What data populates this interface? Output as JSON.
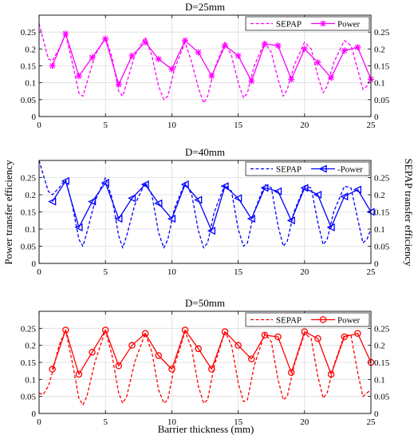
{
  "figure": {
    "xlabel": "Barrier thickness (mm)",
    "ylabel_left": "Power transfer efficiency",
    "ylabel_right": "SEPAP transfer efficiency"
  },
  "chart_data": [
    {
      "type": "line",
      "title": "D=25mm",
      "xlabel": "Barrier thickness (mm)",
      "ylabel": "Power transfer efficiency",
      "ylabel_right": "SEPAP transfer efficiency",
      "xlim": [
        0,
        25
      ],
      "ylim": [
        0,
        0.3
      ],
      "xticks": [
        0,
        5,
        10,
        15,
        20,
        25
      ],
      "yticks": [
        0,
        0.05,
        0.1,
        0.15,
        0.2,
        0.25
      ],
      "ytick_labels": [
        "0",
        "0.05",
        "0.1",
        "0.15",
        "0.2",
        "0.25"
      ],
      "grid": true,
      "legend_position": "top-right",
      "color": "#ff00ff",
      "marker": "star",
      "series": [
        {
          "name": "SEPAP",
          "style": "dashed",
          "x": [
            0,
            0.3,
            0.7,
            1.0,
            1.5,
            2.0,
            2.5,
            3.0,
            3.3,
            3.6,
            4.2,
            5.0,
            5.5,
            6.0,
            6.3,
            6.6,
            7.2,
            8.0,
            8.5,
            9.0,
            9.4,
            9.7,
            10.2,
            11.0,
            11.5,
            12.0,
            12.4,
            12.7,
            13.2,
            14.0,
            14.5,
            15.0,
            15.4,
            15.7,
            16.2,
            17.0,
            17.5,
            18.0,
            18.4,
            18.7,
            19.2,
            20.0,
            20.5,
            21.0,
            21.4,
            21.7,
            22.2,
            23.0,
            23.5,
            24.0,
            24.4,
            24.7,
            25.0
          ],
          "values": [
            0.275,
            0.23,
            0.17,
            0.165,
            0.2,
            0.245,
            0.16,
            0.07,
            0.06,
            0.1,
            0.18,
            0.235,
            0.175,
            0.075,
            0.06,
            0.1,
            0.18,
            0.235,
            0.18,
            0.09,
            0.05,
            0.06,
            0.14,
            0.22,
            0.16,
            0.085,
            0.04,
            0.06,
            0.14,
            0.22,
            0.18,
            0.1,
            0.055,
            0.07,
            0.15,
            0.22,
            0.19,
            0.11,
            0.06,
            0.08,
            0.15,
            0.22,
            0.2,
            0.12,
            0.07,
            0.09,
            0.16,
            0.225,
            0.21,
            0.14,
            0.08,
            0.09,
            0.12
          ]
        },
        {
          "name": "Power",
          "style": "solid",
          "x": [
            1,
            2,
            3,
            4,
            5,
            6,
            7,
            8,
            9,
            10,
            11,
            12,
            13,
            14,
            15,
            16,
            17,
            18,
            19,
            20,
            21,
            22,
            23,
            24,
            25
          ],
          "values": [
            0.15,
            0.245,
            0.12,
            0.175,
            0.23,
            0.095,
            0.18,
            0.22,
            0.17,
            0.14,
            0.225,
            0.19,
            0.12,
            0.21,
            0.18,
            0.105,
            0.215,
            0.21,
            0.11,
            0.2,
            0.16,
            0.115,
            0.195,
            0.205,
            0.11
          ]
        }
      ]
    },
    {
      "type": "line",
      "title": "D=40mm",
      "xlabel": "Barrier thickness (mm)",
      "ylabel": "Power transfer efficiency",
      "ylabel_right": "SEPAP transfer efficiency",
      "xlim": [
        0,
        25
      ],
      "ylim": [
        0,
        0.3
      ],
      "xticks": [
        0,
        5,
        10,
        15,
        20,
        25
      ],
      "yticks": [
        0,
        0.05,
        0.1,
        0.15,
        0.2,
        0.25
      ],
      "ytick_labels": [
        "0",
        "0.05",
        "0.1",
        "0.15",
        "0.2",
        "0.25"
      ],
      "grid": true,
      "legend_position": "top-right",
      "color": "#0000ff",
      "marker": "triangle-left",
      "series": [
        {
          "name": "SEPAP",
          "style": "dashed",
          "x": [
            0,
            0.3,
            0.7,
            1.0,
            1.5,
            2.0,
            2.5,
            3.0,
            3.3,
            3.6,
            4.2,
            5.0,
            5.5,
            6.0,
            6.3,
            6.6,
            7.2,
            8.0,
            8.5,
            9.0,
            9.4,
            9.7,
            10.2,
            11.0,
            11.5,
            12.0,
            12.4,
            12.7,
            13.2,
            14.0,
            14.5,
            15.0,
            15.4,
            15.7,
            16.2,
            17.0,
            17.5,
            18.0,
            18.4,
            18.7,
            19.2,
            20.0,
            20.5,
            21.0,
            21.4,
            21.7,
            22.2,
            23.0,
            23.5,
            24.0,
            24.4,
            24.7,
            25.0
          ],
          "values": [
            0.3,
            0.26,
            0.21,
            0.2,
            0.22,
            0.245,
            0.17,
            0.07,
            0.05,
            0.09,
            0.18,
            0.25,
            0.19,
            0.08,
            0.045,
            0.08,
            0.17,
            0.235,
            0.2,
            0.09,
            0.045,
            0.07,
            0.16,
            0.235,
            0.2,
            0.095,
            0.045,
            0.06,
            0.15,
            0.23,
            0.21,
            0.1,
            0.05,
            0.06,
            0.15,
            0.23,
            0.22,
            0.11,
            0.05,
            0.065,
            0.15,
            0.225,
            0.22,
            0.12,
            0.055,
            0.07,
            0.15,
            0.225,
            0.22,
            0.13,
            0.06,
            0.07,
            0.1
          ]
        },
        {
          "name": "-Power",
          "style": "solid",
          "x": [
            1,
            2,
            3,
            4,
            5,
            6,
            7,
            8,
            9,
            10,
            11,
            12,
            13,
            14,
            15,
            16,
            17,
            18,
            19,
            20,
            21,
            22,
            23,
            24,
            25
          ],
          "values": [
            0.18,
            0.24,
            0.105,
            0.18,
            0.235,
            0.13,
            0.19,
            0.23,
            0.175,
            0.13,
            0.23,
            0.185,
            0.095,
            0.225,
            0.19,
            0.13,
            0.22,
            0.21,
            0.125,
            0.22,
            0.2,
            0.105,
            0.195,
            0.215,
            0.15
          ]
        }
      ]
    },
    {
      "type": "line",
      "title": "D=50mm",
      "xlabel": "Barrier thickness (mm)",
      "ylabel": "Power transfer efficiency",
      "ylabel_right": "SEPAP transfer efficiency",
      "xlim": [
        0,
        25
      ],
      "ylim": [
        0,
        0.3
      ],
      "xticks": [
        0,
        5,
        10,
        15,
        20,
        25
      ],
      "yticks": [
        0,
        0.05,
        0.1,
        0.15,
        0.2,
        0.25
      ],
      "ytick_labels": [
        "0",
        "0.05",
        "0.1",
        "0.15",
        "0.2",
        "0.25"
      ],
      "grid": true,
      "legend_position": "top-right",
      "color": "#ff0000",
      "marker": "circle",
      "series": [
        {
          "name": "SEPAP",
          "style": "dashed",
          "x": [
            0,
            0.3,
            0.7,
            1.0,
            1.5,
            2.0,
            2.5,
            3.0,
            3.3,
            3.6,
            4.2,
            5.0,
            5.5,
            6.0,
            6.3,
            6.6,
            7.2,
            8.0,
            8.5,
            9.0,
            9.4,
            9.7,
            10.2,
            11.0,
            11.5,
            12.0,
            12.4,
            12.7,
            13.2,
            14.0,
            14.5,
            15.0,
            15.4,
            15.7,
            16.2,
            17.0,
            17.5,
            18.0,
            18.4,
            18.7,
            19.2,
            20.0,
            20.5,
            21.0,
            21.4,
            21.7,
            22.2,
            23.0,
            23.5,
            24.0,
            24.4,
            24.7,
            25.0
          ],
          "values": [
            0.06,
            0.055,
            0.08,
            0.12,
            0.2,
            0.245,
            0.15,
            0.045,
            0.025,
            0.05,
            0.15,
            0.245,
            0.17,
            0.06,
            0.03,
            0.05,
            0.15,
            0.235,
            0.18,
            0.07,
            0.03,
            0.04,
            0.14,
            0.24,
            0.19,
            0.08,
            0.03,
            0.04,
            0.14,
            0.24,
            0.2,
            0.09,
            0.035,
            0.04,
            0.14,
            0.235,
            0.21,
            0.1,
            0.04,
            0.05,
            0.14,
            0.235,
            0.22,
            0.11,
            0.045,
            0.06,
            0.14,
            0.23,
            0.23,
            0.12,
            0.05,
            0.06,
            0.07
          ]
        },
        {
          "name": "Power",
          "style": "solid",
          "x": [
            1,
            2,
            3,
            4,
            5,
            6,
            7,
            8,
            9,
            10,
            11,
            12,
            13,
            14,
            15,
            16,
            17,
            18,
            19,
            20,
            21,
            22,
            23,
            24,
            25
          ],
          "values": [
            0.13,
            0.245,
            0.115,
            0.18,
            0.245,
            0.14,
            0.2,
            0.235,
            0.17,
            0.13,
            0.245,
            0.19,
            0.13,
            0.24,
            0.2,
            0.16,
            0.23,
            0.225,
            0.12,
            0.24,
            0.22,
            0.115,
            0.225,
            0.235,
            0.15
          ]
        }
      ]
    }
  ]
}
